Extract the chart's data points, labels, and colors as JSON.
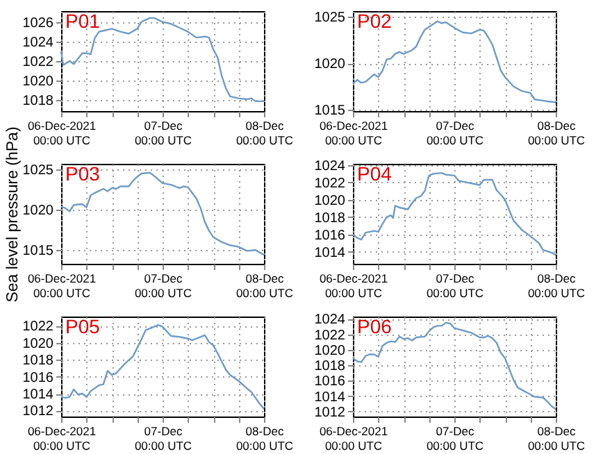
{
  "chart_data": [
    {
      "type": "line",
      "annotations": [
        "P01"
      ],
      "grid": true,
      "xlim": [
        "2021-12-06T00:00",
        "2021-12-08T00:00"
      ],
      "ylim": [
        1016.9,
        1027.1
      ],
      "yticks": [
        1018,
        1020,
        1022,
        1024,
        1026
      ],
      "xticks": [
        {
          "value": "2021-12-06T00:00",
          "label": "06-Dec-2021\n00:00 UTC"
        },
        {
          "value": "2021-12-06T06:00",
          "label": null
        },
        {
          "value": "2021-12-06T12:00",
          "label": null
        },
        {
          "value": "2021-12-06T18:00",
          "label": null
        },
        {
          "value": "2021-12-07T00:00",
          "label": "07-Dec\n00:00 UTC"
        },
        {
          "value": "2021-12-07T06:00",
          "label": null
        },
        {
          "value": "2021-12-07T12:00",
          "label": null
        },
        {
          "value": "2021-12-07T18:00",
          "label": null
        },
        {
          "value": "2021-12-08T00:00",
          "label": "08-Dec\n00:00 UTC"
        }
      ],
      "series": [
        {
          "color": "#6f9bc6",
          "x": [
            "2021-12-06T00:00",
            "2021-12-06T00:30",
            "2021-12-06T02:00",
            "2021-12-06T03:00",
            "2021-12-06T05:00",
            "2021-12-06T06:00",
            "2021-12-06T07:00",
            "2021-12-06T08:00",
            "2021-12-06T09:00",
            "2021-12-06T10:00",
            "2021-12-06T12:00",
            "2021-12-06T14:00",
            "2021-12-06T16:00",
            "2021-12-06T18:00",
            "2021-12-06T19:00",
            "2021-12-06T21:00",
            "2021-12-06T22:00",
            "2021-12-07T00:00",
            "2021-12-07T02:00",
            "2021-12-07T04:00",
            "2021-12-07T06:00",
            "2021-12-07T08:00",
            "2021-12-07T10:00",
            "2021-12-07T11:00",
            "2021-12-07T12:00",
            "2021-12-07T13:00",
            "2021-12-07T14:00",
            "2021-12-07T15:00",
            "2021-12-07T16:00",
            "2021-12-07T18:00",
            "2021-12-07T20:00",
            "2021-12-07T21:00",
            "2021-12-07T22:00",
            "2021-12-08T00:00"
          ],
          "values": [
            1023,
            1021.6,
            1022,
            1021.7,
            1022.8,
            1022.8,
            1022.7,
            1024.4,
            1025,
            1025.1,
            1025.3,
            1025,
            1024.8,
            1025.3,
            1026,
            1026.4,
            1026.4,
            1026,
            1025.8,
            1025.4,
            1025,
            1024.4,
            1024.5,
            1024.4,
            1023.2,
            1022.4,
            1020.5,
            1019.2,
            1018.4,
            1018.2,
            1018.1,
            1018.2,
            1017.9,
            1017.9
          ]
        }
      ]
    },
    {
      "type": "line",
      "annotations": [
        "P02"
      ],
      "grid": true,
      "xlim": [
        "2021-12-06T00:00",
        "2021-12-08T00:00"
      ],
      "ylim": [
        1014.85,
        1025.6
      ],
      "yticks": [
        1015,
        1020,
        1025
      ],
      "xticks": [
        {
          "value": "2021-12-06T00:00",
          "label": "06-Dec-2021\n00:00 UTC"
        },
        {
          "value": "2021-12-06T06:00",
          "label": null
        },
        {
          "value": "2021-12-06T12:00",
          "label": null
        },
        {
          "value": "2021-12-06T18:00",
          "label": null
        },
        {
          "value": "2021-12-07T00:00",
          "label": "07-Dec\n00:00 UTC"
        },
        {
          "value": "2021-12-07T06:00",
          "label": null
        },
        {
          "value": "2021-12-07T12:00",
          "label": null
        },
        {
          "value": "2021-12-07T18:00",
          "label": null
        },
        {
          "value": "2021-12-08T00:00",
          "label": "08-Dec\n00:00 UTC"
        }
      ],
      "series": [
        {
          "color": "#6f9bc6",
          "x": [
            "2021-12-06T00:00",
            "2021-12-06T01:00",
            "2021-12-06T02:00",
            "2021-12-06T03:00",
            "2021-12-06T05:00",
            "2021-12-06T06:00",
            "2021-12-06T07:00",
            "2021-12-06T08:00",
            "2021-12-06T09:00",
            "2021-12-06T10:00",
            "2021-12-06T11:00",
            "2021-12-06T12:00",
            "2021-12-06T14:00",
            "2021-12-06T15:00",
            "2021-12-06T16:00",
            "2021-12-06T17:00",
            "2021-12-06T19:00",
            "2021-12-06T20:00",
            "2021-12-06T21:00",
            "2021-12-06T22:00",
            "2021-12-07T00:00",
            "2021-12-07T02:00",
            "2021-12-07T04:00",
            "2021-12-07T06:00",
            "2021-12-07T07:00",
            "2021-12-07T08:00",
            "2021-12-07T09:00",
            "2021-12-07T10:00",
            "2021-12-07T11:00",
            "2021-12-07T12:00",
            "2021-12-07T14:00",
            "2021-12-07T16:00",
            "2021-12-07T18:00",
            "2021-12-07T19:00",
            "2021-12-07T22:00",
            "2021-12-08T00:00"
          ],
          "values": [
            1017.8,
            1018.2,
            1017.9,
            1018,
            1018.8,
            1018.5,
            1019.2,
            1020.4,
            1020.5,
            1021,
            1021.2,
            1021,
            1021.4,
            1021.8,
            1022.8,
            1023.6,
            1024.2,
            1024.5,
            1024.3,
            1024.4,
            1023.8,
            1023.3,
            1023.2,
            1023.6,
            1023.5,
            1022.8,
            1022,
            1020.6,
            1019.2,
            1018.5,
            1017.5,
            1017,
            1016.8,
            1016.1,
            1015.9,
            1015.8
          ]
        }
      ]
    },
    {
      "type": "line",
      "annotations": [
        "P03"
      ],
      "ylabel": "Sea level pressure (hPa)",
      "grid": true,
      "xlim": [
        "2021-12-06T00:00",
        "2021-12-08T00:00"
      ],
      "ylim": [
        1013.3,
        1025.7
      ],
      "yticks": [
        1015,
        1020,
        1025
      ],
      "xticks": [
        {
          "value": "2021-12-06T00:00",
          "label": "06-Dec-2021\n00:00 UTC"
        },
        {
          "value": "2021-12-06T06:00",
          "label": null
        },
        {
          "value": "2021-12-06T12:00",
          "label": null
        },
        {
          "value": "2021-12-06T18:00",
          "label": null
        },
        {
          "value": "2021-12-07T00:00",
          "label": "07-Dec\n00:00 UTC"
        },
        {
          "value": "2021-12-07T06:00",
          "label": null
        },
        {
          "value": "2021-12-07T12:00",
          "label": null
        },
        {
          "value": "2021-12-07T18:00",
          "label": null
        },
        {
          "value": "2021-12-08T00:00",
          "label": "08-Dec\n00:00 UTC"
        }
      ],
      "series": [
        {
          "color": "#6f9bc6",
          "x": [
            "2021-12-06T00:00",
            "2021-12-06T01:00",
            "2021-12-06T02:00",
            "2021-12-06T03:00",
            "2021-12-06T05:00",
            "2021-12-06T06:00",
            "2021-12-06T07:00",
            "2021-12-06T08:00",
            "2021-12-06T10:00",
            "2021-12-06T11:00",
            "2021-12-06T12:00",
            "2021-12-06T13:00",
            "2021-12-06T14:00",
            "2021-12-06T16:00",
            "2021-12-06T17:00",
            "2021-12-06T18:00",
            "2021-12-06T19:00",
            "2021-12-06T21:00",
            "2021-12-06T22:00",
            "2021-12-07T00:00",
            "2021-12-07T02:00",
            "2021-12-07T04:00",
            "2021-12-07T05:00",
            "2021-12-07T06:00",
            "2021-12-07T07:00",
            "2021-12-07T08:00",
            "2021-12-07T09:00",
            "2021-12-07T10:00",
            "2021-12-07T11:00",
            "2021-12-07T12:00",
            "2021-12-07T14:00",
            "2021-12-07T16:00",
            "2021-12-07T18:00",
            "2021-12-07T20:00",
            "2021-12-07T22:00",
            "2021-12-08T00:00"
          ],
          "values": [
            1020.4,
            1020.2,
            1019.8,
            1020.6,
            1020.7,
            1020.3,
            1021.8,
            1022.1,
            1022.6,
            1022.3,
            1022.7,
            1022.6,
            1022.9,
            1022.9,
            1023.6,
            1024.1,
            1024.5,
            1024.6,
            1024.2,
            1023.3,
            1023.1,
            1022.7,
            1022.9,
            1022.8,
            1022.1,
            1021.4,
            1020.2,
            1018.5,
            1017.4,
            1016.6,
            1016,
            1015.6,
            1015.4,
            1014.9,
            1015,
            1014.4
          ]
        }
      ]
    },
    {
      "type": "line",
      "annotations": [
        "P04"
      ],
      "grid": true,
      "xlim": [
        "2021-12-06T00:00",
        "2021-12-08T00:00"
      ],
      "ylim": [
        1012.6,
        1024.15
      ],
      "yticks": [
        1014,
        1016,
        1018,
        1020,
        1022,
        1024
      ],
      "xticks": [
        {
          "value": "2021-12-06T00:00",
          "label": "06-Dec-2021\n00:00 UTC"
        },
        {
          "value": "2021-12-06T06:00",
          "label": null
        },
        {
          "value": "2021-12-06T12:00",
          "label": null
        },
        {
          "value": "2021-12-06T18:00",
          "label": null
        },
        {
          "value": "2021-12-07T00:00",
          "label": "07-Dec\n00:00 UTC"
        },
        {
          "value": "2021-12-07T06:00",
          "label": null
        },
        {
          "value": "2021-12-07T12:00",
          "label": null
        },
        {
          "value": "2021-12-07T18:00",
          "label": null
        },
        {
          "value": "2021-12-08T00:00",
          "label": "08-Dec\n00:00 UTC"
        }
      ],
      "series": [
        {
          "color": "#6f9bc6",
          "x": [
            "2021-12-06T00:00",
            "2021-12-06T01:00",
            "2021-12-06T02:00",
            "2021-12-06T03:00",
            "2021-12-06T05:00",
            "2021-12-06T06:00",
            "2021-12-06T07:00",
            "2021-12-06T08:00",
            "2021-12-06T09:00",
            "2021-12-06T09:30",
            "2021-12-06T10:00",
            "2021-12-06T11:00",
            "2021-12-06T13:00",
            "2021-12-06T14:00",
            "2021-12-06T15:00",
            "2021-12-06T16:00",
            "2021-12-06T17:00",
            "2021-12-06T18:00",
            "2021-12-06T19:00",
            "2021-12-06T21:00",
            "2021-12-06T22:00",
            "2021-12-07T00:00",
            "2021-12-07T01:00",
            "2021-12-07T04:00",
            "2021-12-07T06:00",
            "2021-12-07T07:00",
            "2021-12-07T09:00",
            "2021-12-07T10:00",
            "2021-12-07T11:00",
            "2021-12-07T12:00",
            "2021-12-07T14:00",
            "2021-12-07T16:00",
            "2021-12-07T18:00",
            "2021-12-07T20:00",
            "2021-12-07T21:00",
            "2021-12-07T23:00",
            "2021-12-08T00:00"
          ],
          "values": [
            1016,
            1015.6,
            1015.4,
            1016.2,
            1016.4,
            1016.3,
            1017.2,
            1018,
            1018.2,
            1017.9,
            1019.3,
            1019.1,
            1018.9,
            1019.6,
            1020.2,
            1020.4,
            1021,
            1022.8,
            1023,
            1023.1,
            1022.9,
            1022.8,
            1022.2,
            1021.9,
            1021.7,
            1022.3,
            1022.3,
            1021.1,
            1020.6,
            1020,
            1017.6,
            1016.5,
            1015.8,
            1015,
            1014.2,
            1013.9,
            1013.6
          ]
        }
      ]
    },
    {
      "type": "line",
      "annotations": [
        "P05"
      ],
      "grid": true,
      "xlim": [
        "2021-12-06T00:00",
        "2021-12-08T00:00"
      ],
      "ylim": [
        1011.3,
        1023.1
      ],
      "yticks": [
        1012,
        1014,
        1016,
        1018,
        1020,
        1022
      ],
      "xticks": [
        {
          "value": "2021-12-06T00:00",
          "label": "06-Dec-2021\n00:00 UTC"
        },
        {
          "value": "2021-12-06T06:00",
          "label": null
        },
        {
          "value": "2021-12-06T12:00",
          "label": null
        },
        {
          "value": "2021-12-06T18:00",
          "label": null
        },
        {
          "value": "2021-12-07T00:00",
          "label": "07-Dec\n00:00 UTC"
        },
        {
          "value": "2021-12-07T06:00",
          "label": null
        },
        {
          "value": "2021-12-07T12:00",
          "label": null
        },
        {
          "value": "2021-12-07T18:00",
          "label": null
        },
        {
          "value": "2021-12-08T00:00",
          "label": "08-Dec\n00:00 UTC"
        }
      ],
      "series": [
        {
          "color": "#6f9bc6",
          "x": [
            "2021-12-06T00:00",
            "2021-12-06T01:00",
            "2021-12-06T02:00",
            "2021-12-06T03:00",
            "2021-12-06T04:00",
            "2021-12-06T05:00",
            "2021-12-06T06:00",
            "2021-12-06T07:00",
            "2021-12-06T09:00",
            "2021-12-06T10:00",
            "2021-12-06T11:00",
            "2021-12-06T12:00",
            "2021-12-06T13:00",
            "2021-12-06T15:00",
            "2021-12-06T17:00",
            "2021-12-06T18:00",
            "2021-12-06T19:00",
            "2021-12-06T20:00",
            "2021-12-06T21:00",
            "2021-12-06T23:00",
            "2021-12-07T00:00",
            "2021-12-07T02:00",
            "2021-12-07T04:00",
            "2021-12-07T06:00",
            "2021-12-07T07:00",
            "2021-12-07T09:00",
            "2021-12-07T10:00",
            "2021-12-07T11:00",
            "2021-12-07T12:00",
            "2021-12-07T13:00",
            "2021-12-07T14:00",
            "2021-12-07T15:00",
            "2021-12-07T16:00",
            "2021-12-07T18:00",
            "2021-12-07T20:00",
            "2021-12-07T21:00",
            "2021-12-07T23:00",
            "2021-12-08T00:00"
          ],
          "values": [
            1013.6,
            1013.5,
            1013.6,
            1014.5,
            1013.9,
            1014,
            1013.6,
            1014.3,
            1015,
            1015.1,
            1016.7,
            1016.2,
            1016.4,
            1017.5,
            1018.4,
            1019.4,
            1020.4,
            1021.5,
            1021.7,
            1022.1,
            1021.9,
            1020.8,
            1020.7,
            1020.5,
            1020.3,
            1020.7,
            1020.9,
            1020.1,
            1019.7,
            1018.8,
            1017.8,
            1016.8,
            1016.2,
            1015.5,
            1014.6,
            1014.2,
            1012.8,
            1012.2
          ]
        }
      ]
    },
    {
      "type": "line",
      "annotations": [
        "P06"
      ],
      "grid": true,
      "xlim": [
        "2021-12-06T00:00",
        "2021-12-08T00:00"
      ],
      "ylim": [
        1011.35,
        1024.3
      ],
      "yticks": [
        1012,
        1014,
        1016,
        1018,
        1020,
        1022,
        1024
      ],
      "xticks": [
        {
          "value": "2021-12-06T00:00",
          "label": "06-Dec-2021\n00:00 UTC"
        },
        {
          "value": "2021-12-06T06:00",
          "label": null
        },
        {
          "value": "2021-12-06T12:00",
          "label": null
        },
        {
          "value": "2021-12-06T18:00",
          "label": null
        },
        {
          "value": "2021-12-07T00:00",
          "label": "07-Dec\n00:00 UTC"
        },
        {
          "value": "2021-12-07T06:00",
          "label": null
        },
        {
          "value": "2021-12-07T12:00",
          "label": null
        },
        {
          "value": "2021-12-07T18:00",
          "label": null
        },
        {
          "value": "2021-12-08T00:00",
          "label": "08-Dec\n00:00 UTC"
        }
      ],
      "series": [
        {
          "color": "#6f9bc6",
          "x": [
            "2021-12-06T00:00",
            "2021-12-06T01:00",
            "2021-12-06T02:00",
            "2021-12-06T03:00",
            "2021-12-06T04:00",
            "2021-12-06T05:00",
            "2021-12-06T06:00",
            "2021-12-06T07:00",
            "2021-12-06T08:00",
            "2021-12-06T09:00",
            "2021-12-06T10:00",
            "2021-12-06T11:00",
            "2021-12-06T12:00",
            "2021-12-06T13:00",
            "2021-12-06T14:00",
            "2021-12-06T15:00",
            "2021-12-06T17:00",
            "2021-12-06T18:00",
            "2021-12-06T19:00",
            "2021-12-06T20:00",
            "2021-12-06T21:00",
            "2021-12-06T22:00",
            "2021-12-06T23:00",
            "2021-12-07T00:00",
            "2021-12-07T02:00",
            "2021-12-07T04:00",
            "2021-12-07T06:00",
            "2021-12-07T07:00",
            "2021-12-07T08:00",
            "2021-12-07T09:00",
            "2021-12-07T10:00",
            "2021-12-07T11:00",
            "2021-12-07T12:00",
            "2021-12-07T13:00",
            "2021-12-07T14:00",
            "2021-12-07T15:00",
            "2021-12-07T16:00",
            "2021-12-07T18:00",
            "2021-12-07T19:00",
            "2021-12-07T21:00",
            "2021-12-07T22:00",
            "2021-12-07T23:00",
            "2021-12-08T00:00"
          ],
          "values": [
            1018.9,
            1018.5,
            1018.4,
            1019.2,
            1019.4,
            1019.4,
            1019.1,
            1020.5,
            1020.9,
            1021.1,
            1021,
            1021.7,
            1021.4,
            1021.5,
            1021.2,
            1021.6,
            1021.7,
            1022.4,
            1022.9,
            1023.1,
            1023.1,
            1023.5,
            1023.4,
            1022.8,
            1022.5,
            1022.2,
            1021.6,
            1021.6,
            1021.8,
            1021.5,
            1020.9,
            1019.6,
            1018.9,
            1017.5,
            1016.1,
            1015.1,
            1014.8,
            1014.2,
            1013.9,
            1013.8,
            1013.3,
            1012.7,
            1012.3
          ]
        }
      ]
    }
  ]
}
